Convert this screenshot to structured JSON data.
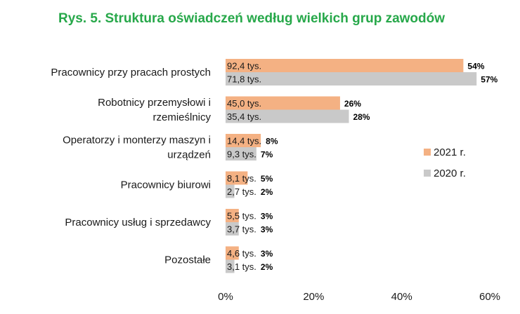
{
  "chart_data": {
    "type": "bar",
    "orientation": "horizontal",
    "title": "Rys. 5. Struktura oświadczeń według wielkich grup zawodów",
    "title_color": "#27a84a",
    "categories": [
      "Pracownicy przy pracach prostych",
      "Robotnicy przemysłowi i rzemieślnicy",
      "Operatorzy i monterzy maszyn i urządzeń",
      "Pracownicy biurowi",
      "Pracownicy usług i sprzedawcy",
      "Pozostałe"
    ],
    "category_lines": [
      [
        "Pracownicy przy pracach prostych"
      ],
      [
        "Robotnicy przemysłowi i",
        "rzemieślnicy"
      ],
      [
        "Operatorzy i monterzy maszyn i",
        "urządzeń"
      ],
      [
        "Pracownicy biurowi"
      ],
      [
        "Pracownicy usług i sprzedawcy"
      ],
      [
        "Pozostałe"
      ]
    ],
    "series": [
      {
        "name": "2021 r.",
        "color": "#f4b183",
        "values": [
          54,
          26,
          8,
          5,
          3,
          3
        ],
        "value_labels": [
          "54%",
          "26%",
          "8%",
          "5%",
          "3%",
          "3%"
        ],
        "bar_labels": [
          "92,4 tys.",
          "45,0 tys.",
          "14,4 tys.",
          "8,1 tys.",
          "5,5 tys.",
          "4,6 tys."
        ]
      },
      {
        "name": "2020 r.",
        "color": "#c9c9c9",
        "values": [
          57,
          28,
          7,
          2,
          3,
          2
        ],
        "value_labels": [
          "57%",
          "28%",
          "7%",
          "2%",
          "3%",
          "2%"
        ],
        "bar_labels": [
          "71,8 tys.",
          "35,4 tys.",
          "9,3 tys.",
          "2,7 tys.",
          "3,7 tys.",
          "3,1 tys."
        ]
      }
    ],
    "xlim": [
      0,
      60
    ],
    "xticks": [
      "0%",
      "20%",
      "40%",
      "60%"
    ],
    "grid": false,
    "legend_position": "right"
  }
}
